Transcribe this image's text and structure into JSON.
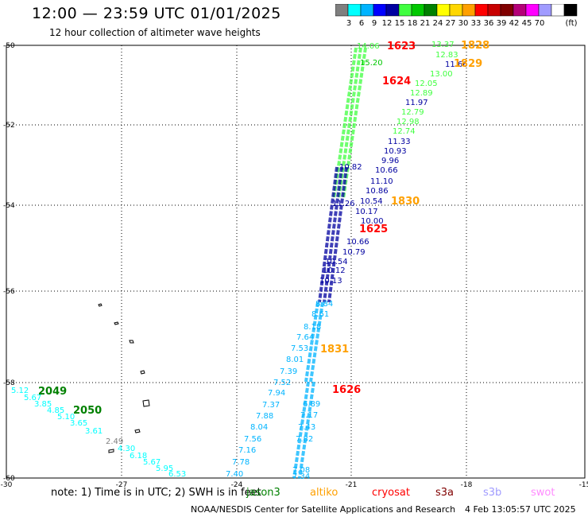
{
  "title": "12:00 — 23:59 UTC 01/01/2025",
  "subtitle": "12 hour collection of altimeter wave heights",
  "units": "(ft)",
  "colorscale": {
    "colors": [
      "#7f7f7f",
      "#00ffff",
      "#00b4ff",
      "#0000ff",
      "#0000a0",
      "#40ff40",
      "#00c800",
      "#008000",
      "#ffff00",
      "#ffd700",
      "#ffa000",
      "#ff0000",
      "#c80000",
      "#800000",
      "#b40078",
      "#ff00ff",
      "#a09bff",
      "#ffffff",
      "#000000"
    ],
    "labels": [
      "3",
      "6",
      "9",
      "12",
      "15",
      "18",
      "21",
      "24",
      "27",
      "30",
      "33",
      "36",
      "39",
      "42",
      "45",
      "70"
    ]
  },
  "axes": {
    "lat_labels": [
      "-50",
      "-52",
      "-54",
      "-56",
      "-58",
      "-60"
    ],
    "lon_labels": [
      "-30",
      "-27",
      "-24",
      "-21",
      "-18",
      "-15"
    ]
  },
  "passes": [
    {
      "label": "1623",
      "color": "#ff0000"
    },
    {
      "label": "1624",
      "color": "#ff0000"
    },
    {
      "label": "1625",
      "color": "#ff0000"
    },
    {
      "label": "1626",
      "color": "#ff0000"
    },
    {
      "label": "1828",
      "color": "#ffa000"
    },
    {
      "label": "1829",
      "color": "#ffa000"
    },
    {
      "label": "1830",
      "color": "#ffa000"
    },
    {
      "label": "1831",
      "color": "#ffa000"
    },
    {
      "label": "2049",
      "color": "#008000"
    },
    {
      "label": "2050",
      "color": "#008000"
    }
  ],
  "readings": [
    {
      "v": "14.06",
      "c": "#40ff40"
    },
    {
      "v": "13.37",
      "c": "#40ff40"
    },
    {
      "v": "12.83",
      "c": "#40ff40"
    },
    {
      "v": "11.66",
      "c": "#0000a0"
    },
    {
      "v": "15.20",
      "c": "#00c800"
    },
    {
      "v": "13.00",
      "c": "#40ff40"
    },
    {
      "v": "12.05",
      "c": "#40ff40"
    },
    {
      "v": "12.89",
      "c": "#40ff40"
    },
    {
      "v": "11.97",
      "c": "#0000a0"
    },
    {
      "v": "12.79",
      "c": "#40ff40"
    },
    {
      "v": "12.98",
      "c": "#40ff40"
    },
    {
      "v": "12.74",
      "c": "#40ff40"
    },
    {
      "v": "11.33",
      "c": "#0000a0"
    },
    {
      "v": "10.93",
      "c": "#0000a0"
    },
    {
      "v": "9.96",
      "c": "#0000a0"
    },
    {
      "v": "10.82",
      "c": "#0000a0"
    },
    {
      "v": "10.66",
      "c": "#0000a0"
    },
    {
      "v": "11.10",
      "c": "#0000a0"
    },
    {
      "v": "10.86",
      "c": "#0000a0"
    },
    {
      "v": "10.54",
      "c": "#0000a0"
    },
    {
      "v": "10.17",
      "c": "#0000a0"
    },
    {
      "v": "10.00",
      "c": "#0000a0"
    },
    {
      "v": "11.26",
      "c": "#0000a0"
    },
    {
      "v": "10.66",
      "c": "#0000a0"
    },
    {
      "v": "10.79",
      "c": "#0000a0"
    },
    {
      "v": "10.54",
      "c": "#0000a0"
    },
    {
      "v": "10.12",
      "c": "#0000a0"
    },
    {
      "v": "10.13",
      "c": "#0000a0"
    },
    {
      "v": "8.84",
      "c": "#00b4ff"
    },
    {
      "v": "8.61",
      "c": "#00b4ff"
    },
    {
      "v": "8.18",
      "c": "#00b4ff"
    },
    {
      "v": "7.64",
      "c": "#00b4ff"
    },
    {
      "v": "7.53",
      "c": "#00b4ff"
    },
    {
      "v": "8.01",
      "c": "#00b4ff"
    },
    {
      "v": "7.39",
      "c": "#00b4ff"
    },
    {
      "v": "7.52",
      "c": "#00b4ff"
    },
    {
      "v": "7.94",
      "c": "#00b4ff"
    },
    {
      "v": "7.37",
      "c": "#00b4ff"
    },
    {
      "v": "7.88",
      "c": "#00b4ff"
    },
    {
      "v": "8.04",
      "c": "#00b4ff"
    },
    {
      "v": "7.56",
      "c": "#00b4ff"
    },
    {
      "v": "7.16",
      "c": "#00b4ff"
    },
    {
      "v": "7.78",
      "c": "#00b4ff"
    },
    {
      "v": "7.40",
      "c": "#00b4ff"
    },
    {
      "v": "6.89",
      "c": "#00b4ff"
    },
    {
      "v": "7.17",
      "c": "#00b4ff"
    },
    {
      "v": "7.43",
      "c": "#00b4ff"
    },
    {
      "v": "7.82",
      "c": "#00b4ff"
    },
    {
      "v": "7.08",
      "c": "#00b4ff"
    },
    {
      "v": "7.34",
      "c": "#00b4ff"
    },
    {
      "v": "5.12",
      "c": "#00ffff"
    },
    {
      "v": "5.67",
      "c": "#00ffff"
    },
    {
      "v": "3.85",
      "c": "#00ffff"
    },
    {
      "v": "4.85",
      "c": "#00ffff"
    },
    {
      "v": "5.10",
      "c": "#00ffff"
    },
    {
      "v": "3.65",
      "c": "#00ffff"
    },
    {
      "v": "3.61",
      "c": "#00ffff"
    },
    {
      "v": "2.49",
      "c": "#7f7f7f"
    },
    {
      "v": "4.30",
      "c": "#00ffff"
    },
    {
      "v": "6.18",
      "c": "#00ffff"
    },
    {
      "v": "5.67",
      "c": "#00ffff"
    },
    {
      "v": "5.95",
      "c": "#00ffff"
    },
    {
      "v": "6.53",
      "c": "#00ffff"
    }
  ],
  "note": "note: 1) Time is in UTC; 2) SWH is in feet",
  "sources": [
    {
      "name": "jason3",
      "color": "#008000"
    },
    {
      "name": "altiko",
      "color": "#ffa000"
    },
    {
      "name": "cryosat",
      "color": "#ff0000"
    },
    {
      "name": "s3a",
      "color": "#800000"
    },
    {
      "name": "s3b",
      "color": "#a09bff"
    },
    {
      "name": "swot",
      "color": "#ff8cff"
    }
  ],
  "footer": {
    "center": "NOAA/NESDIS Center for Satellite Applications and Research",
    "date": "4 Feb 13:05:57 UTC 2025"
  }
}
